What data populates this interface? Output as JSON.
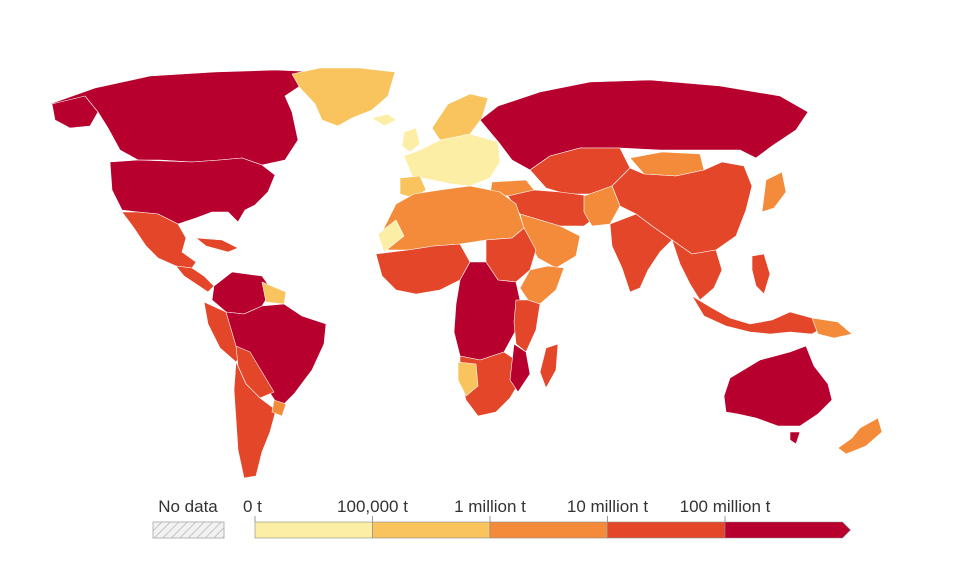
{
  "legend": {
    "no_data_label": "No data",
    "no_data_pattern": "diagonal-hatch",
    "tick_labels": [
      "0 t",
      "100,000 t",
      "1 million t",
      "10 million t",
      "100 million t"
    ],
    "bins": [
      {
        "from": "0 t",
        "to": "100,000 t",
        "color": "#fdeea6"
      },
      {
        "from": "100,000 t",
        "to": "1 million t",
        "color": "#f9c45d"
      },
      {
        "from": "1 million t",
        "to": "10 million t",
        "color": "#f48b3a"
      },
      {
        "from": "10 million t",
        "to": "100 million t",
        "color": "#e4462a"
      },
      {
        "from": "100 million t",
        "to": null,
        "color": "#b7002e"
      }
    ],
    "open_ended_last_bin": true
  },
  "colors": {
    "border": "#ffffff",
    "no_data_fill": "#eeeeee",
    "no_data_stroke": "#b5b5b5"
  }
}
